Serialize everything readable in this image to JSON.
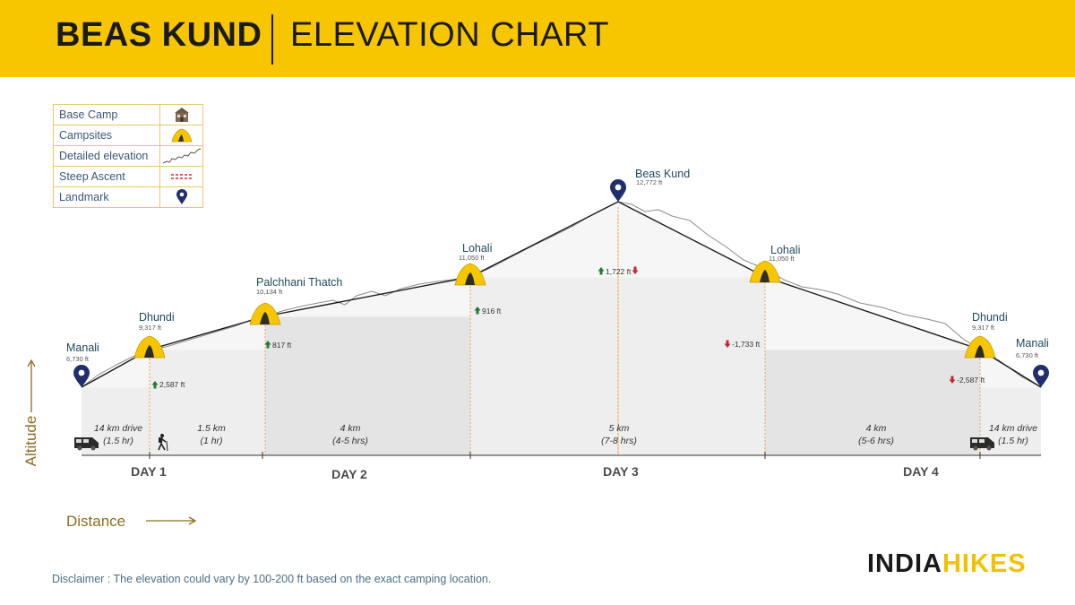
{
  "header": {
    "title_bold": "BEAS KUND",
    "title_light": "ELEVATION CHART"
  },
  "legend": {
    "items": [
      {
        "label": "Base Camp",
        "icon": "house-icon"
      },
      {
        "label": "Campsites",
        "icon": "tent-icon"
      },
      {
        "label": "Detailed elevation",
        "icon": "squiggle-line-icon"
      },
      {
        "label": "Steep Ascent",
        "icon": "red-dashed-line-icon"
      },
      {
        "label": "Landmark",
        "icon": "map-pin-icon"
      }
    ]
  },
  "axes": {
    "y_label": "Altitude",
    "x_label": "Distance",
    "label_color": "#8a6d1f"
  },
  "chart_data": {
    "type": "area",
    "y_unit": "ft",
    "points": [
      {
        "name": "Manali",
        "elevation": 6730,
        "elevation_label": "6,730 ft",
        "marker": "landmark"
      },
      {
        "name": "Dhundi",
        "elevation": 9317,
        "elevation_label": "9,317 ft",
        "marker": "campsite"
      },
      {
        "name": "Palchhani Thatch",
        "elevation": 10134,
        "elevation_label": "10,134 ft",
        "marker": "campsite"
      },
      {
        "name": "Lohali",
        "elevation": 11050,
        "elevation_label": "11,050 ft",
        "marker": "campsite"
      },
      {
        "name": "Beas Kund",
        "elevation": 12772,
        "elevation_label": "12,772  ft",
        "marker": "landmark"
      },
      {
        "name": "Lohali",
        "elevation": 11050,
        "elevation_label": "11,050 ft",
        "marker": "campsite"
      },
      {
        "name": "Dhundi",
        "elevation": 9317,
        "elevation_label": "9,317 ft",
        "marker": "campsite"
      },
      {
        "name": "Manali",
        "elevation": 6730,
        "elevation_label": "6,730 ft",
        "marker": "landmark"
      }
    ],
    "changes": [
      {
        "text": "2,587 ft",
        "direction": "up"
      },
      {
        "text": "817 ft",
        "direction": "up"
      },
      {
        "text": "916 ft",
        "direction": "up"
      },
      {
        "text": "1,722 ft",
        "direction": "up-down"
      },
      {
        "text": "-1,733 ft",
        "direction": "down"
      },
      {
        "text": "-2,587 ft",
        "direction": "down"
      }
    ],
    "segments": [
      {
        "distance": "14 km drive",
        "duration": "(1.5 hr)",
        "mode": "drive"
      },
      {
        "distance": "1.5 km",
        "duration": "(1 hr)",
        "mode": "trek"
      },
      {
        "distance": "4 km",
        "duration": "(4-5 hrs)",
        "mode": "trek"
      },
      {
        "distance": "5 km",
        "duration": "(7-8 hrs)",
        "mode": "trek"
      },
      {
        "distance": "4 km",
        "duration": "(5-6 hrs)",
        "mode": "trek"
      },
      {
        "distance": "14 km drive",
        "duration": "(1.5 hr)",
        "mode": "drive"
      }
    ],
    "days": [
      "DAY 1",
      "DAY 2",
      "DAY 3",
      "DAY 4"
    ],
    "colors": {
      "profile_line": "#1a1a1a",
      "detail_line": "#8c8c8c",
      "fill_light": "#f3f3f3",
      "fill_dark": "#e3e3e3",
      "divider": "#f0a050",
      "tent": "#f7c600",
      "pin": "#1f2f6e",
      "up_arrow": "#1f7a35",
      "down_arrow": "#c0282d",
      "place_label": "#1f4a5a"
    }
  },
  "disclaimer": "Disclaimer : The elevation could vary by 100-200 ft based on the exact camping location.",
  "brand": {
    "part1": "INDIA",
    "part2": "HIKES"
  }
}
